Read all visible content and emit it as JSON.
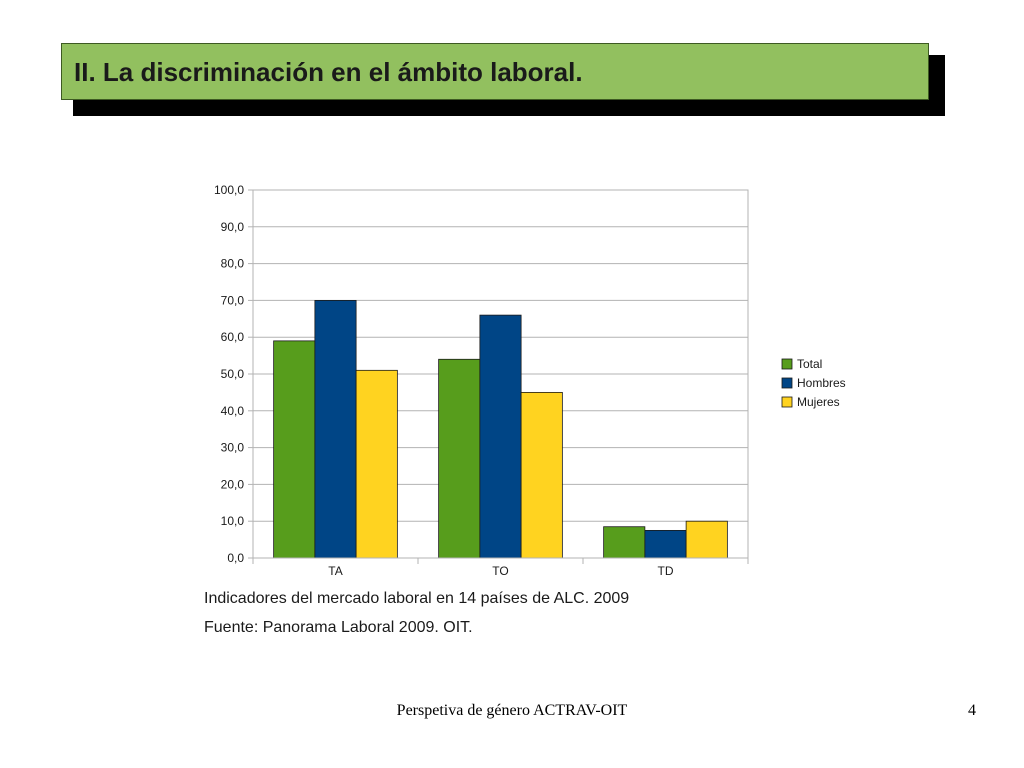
{
  "slide": {
    "title": "II. La discriminación en el ámbito laboral.",
    "caption_line1": "Indicadores del mercado laboral en 14 países de ALC. 2009",
    "caption_line2": "Fuente: Panorama Laboral 2009. OIT.",
    "footer": "Perspetiva de género ACTRAV-OIT",
    "page_number": "4"
  },
  "colors": {
    "title_bg": "#92c05f",
    "title_shadow": "#000000",
    "grid": "#b3b3b3"
  },
  "chart_data": {
    "type": "bar",
    "categories": [
      "TA",
      "TO",
      "TD"
    ],
    "series": [
      {
        "name": "Total",
        "color": "#579d1c",
        "values": [
          59.0,
          54.0,
          8.5
        ]
      },
      {
        "name": "Hombres",
        "color": "#004586",
        "values": [
          70.0,
          66.0,
          7.5
        ]
      },
      {
        "name": "Mujeres",
        "color": "#ffd320",
        "values": [
          51.0,
          45.0,
          10.0
        ]
      }
    ],
    "ylim": [
      0,
      100
    ],
    "ytick_labels": [
      "0,0",
      "10,0",
      "20,0",
      "30,0",
      "40,0",
      "50,0",
      "60,0",
      "70,0",
      "80,0",
      "90,0",
      "100,0"
    ],
    "grid": true,
    "legend_position": "right"
  }
}
